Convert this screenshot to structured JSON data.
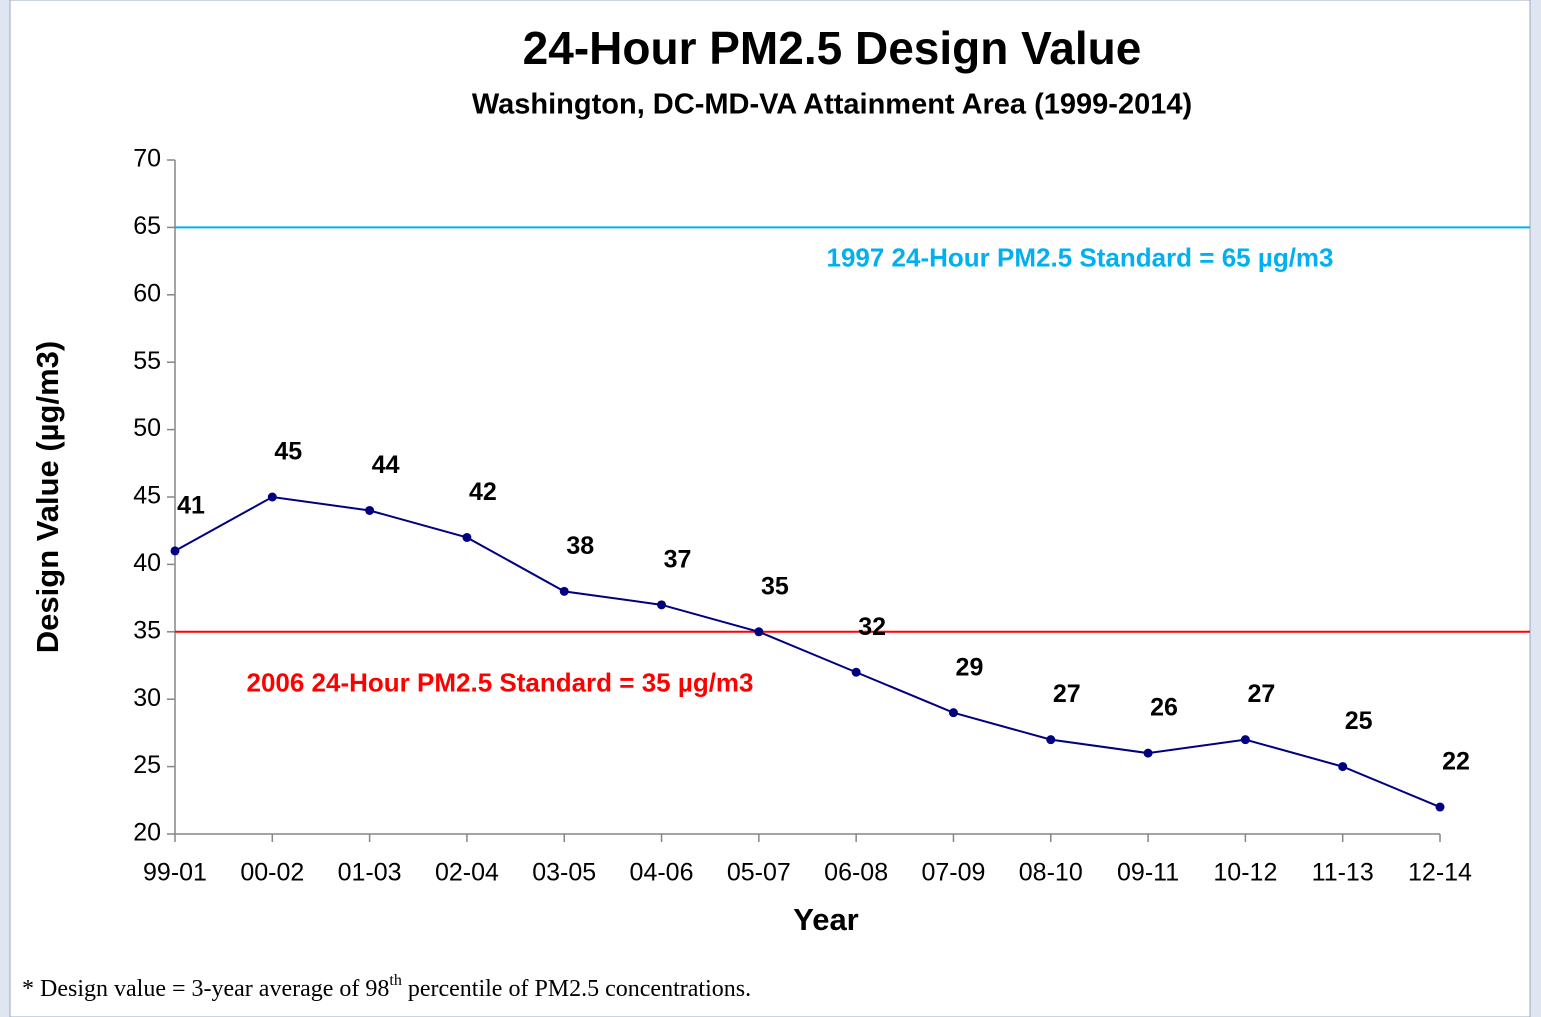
{
  "chart_data": {
    "type": "line",
    "title": "24-Hour PM2.5 Design Value",
    "subtitle": "Washington, DC-MD-VA Attainment Area (1999-2014)",
    "x_label": "Year",
    "y_label": "Design Value (µg/m3)",
    "categories": [
      "99-01",
      "00-02",
      "01-03",
      "02-04",
      "03-05",
      "04-06",
      "05-07",
      "06-08",
      "07-09",
      "08-10",
      "09-11",
      "10-12",
      "11-13",
      "12-14"
    ],
    "series": [
      {
        "name": "Design Value",
        "color": "#000080",
        "values": [
          41,
          45,
          44,
          42,
          38,
          37,
          35,
          32,
          29,
          27,
          26,
          27,
          25,
          22
        ]
      }
    ],
    "ylim": [
      20,
      70
    ],
    "yticks": [
      20,
      25,
      30,
      35,
      40,
      45,
      50,
      55,
      60,
      65,
      70
    ],
    "reference_lines": [
      {
        "value": 65,
        "color": "#00b0f0",
        "label": "1997 24-Hour PM2.5 Standard = 65 µg/m3"
      },
      {
        "value": 35,
        "color": "#ff0000",
        "label": "2006 24-Hour PM2.5 Standard = 35 µg/m3"
      }
    ],
    "footnote": {
      "before": "* Design value = 3-year average of  98",
      "sup": "th",
      "after": " percentile of PM2.5 concentrations."
    }
  }
}
